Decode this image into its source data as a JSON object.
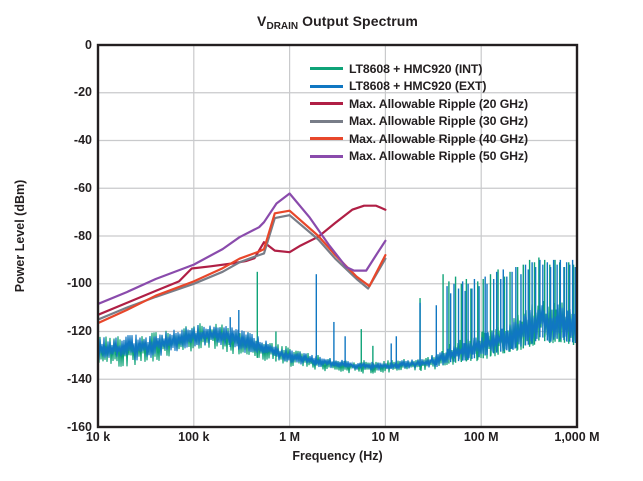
{
  "chart_data": {
    "type": "line",
    "title_prefix": "V",
    "title_sub": "DRAIN",
    "title_rest": "Output Spectrum",
    "xlabel": "Frequency (Hz)",
    "ylabel": "Power Level (dBm)",
    "x_scale": "log",
    "xlim": [
      10000,
      1000000000
    ],
    "ylim": [
      -160,
      0
    ],
    "grid": true,
    "legend_position": "top-right",
    "colors": {
      "axis": "#231f20",
      "grid": "#c9cacc",
      "background": "#ffffff"
    },
    "x_ticks": [
      {
        "f": 10000,
        "label": "10 k"
      },
      {
        "f": 100000,
        "label": "100 k"
      },
      {
        "f": 1000000,
        "label": "1 M"
      },
      {
        "f": 10000000,
        "label": "10 M"
      },
      {
        "f": 100000000,
        "label": "100 M"
      },
      {
        "f": 1000000000,
        "label": "1,000 M"
      }
    ],
    "y_ticks": [
      {
        "v": 0,
        "label": "0"
      },
      {
        "v": -20,
        "label": "-20"
      },
      {
        "v": -40,
        "label": "-40"
      },
      {
        "v": -60,
        "label": "-60"
      },
      {
        "v": -80,
        "label": "-80"
      },
      {
        "v": -100,
        "label": "-100"
      },
      {
        "v": -120,
        "label": "-120"
      },
      {
        "v": -140,
        "label": "-140"
      },
      {
        "v": -160,
        "label": "-160"
      }
    ],
    "series": [
      {
        "name": "LT8608 + HMC920 (INT)",
        "color": "#0fa378",
        "type": "noise",
        "envelope": [
          [
            10000.0,
            -121.5,
            -136
          ],
          [
            20000.0,
            -121,
            -135
          ],
          [
            32000.0,
            -120.5,
            -134
          ],
          [
            50000.0,
            -119.5,
            -132
          ],
          [
            79000.0,
            -118,
            -130
          ],
          [
            110000.0,
            -116.5,
            -128
          ],
          [
            160000.0,
            -116,
            -128
          ],
          [
            220000.0,
            -117,
            -129
          ],
          [
            320000.0,
            -119,
            -131
          ],
          [
            450000.0,
            -121,
            -132
          ],
          [
            630000.0,
            -124,
            -133
          ],
          [
            1000000.0,
            -126.5,
            -135
          ],
          [
            1600000.0,
            -129,
            -136
          ],
          [
            2500000.0,
            -130.5,
            -137
          ],
          [
            4000000.0,
            -131.5,
            -137.5
          ],
          [
            6300000.0,
            -132,
            -138
          ],
          [
            10000000.0,
            -132,
            -138
          ],
          [
            16000000.0,
            -131.5,
            -137.5
          ],
          [
            25000000.0,
            -130.5,
            -137
          ],
          [
            35000000.0,
            -129,
            -136
          ],
          [
            45000000.0,
            -125,
            -134.5
          ],
          [
            56000000.0,
            -123.5,
            -134
          ],
          [
            71000000.0,
            -122,
            -133.5
          ],
          [
            89000000.0,
            -121,
            -133
          ],
          [
            110000000.0,
            -119.5,
            -132
          ],
          [
            140000000.0,
            -118,
            -131
          ],
          [
            180000000.0,
            -116,
            -130
          ],
          [
            220000000.0,
            -114,
            -129
          ],
          [
            280000000.0,
            -111,
            -128
          ],
          [
            350000000.0,
            -107,
            -127
          ],
          [
            420000000.0,
            -104.5,
            -124
          ],
          [
            500000000.0,
            -108,
            -126
          ],
          [
            630000000.0,
            -106.5,
            -125
          ],
          [
            790000000.0,
            -108,
            -126
          ],
          [
            1000000000.0,
            -110,
            -127
          ]
        ],
        "spikes": [
          [
            460000.0,
            -95
          ],
          [
            720000.0,
            -120
          ],
          [
            5600000.0,
            -119
          ],
          [
            7400000.0,
            -126
          ],
          [
            23000000.0,
            -106
          ],
          [
            40000000.0,
            -96
          ],
          [
            46000000.0,
            -99
          ],
          [
            54000000.0,
            -97
          ],
          [
            62000000.0,
            -100
          ],
          [
            70000000.0,
            -98
          ],
          [
            78000000.0,
            -102
          ],
          [
            92000000.0,
            -99
          ],
          [
            105000000.0,
            -98
          ],
          [
            125000000.0,
            -96
          ],
          [
            150000000.0,
            -94
          ],
          [
            175000000.0,
            -97
          ],
          [
            200000000.0,
            -95
          ],
          [
            240000000.0,
            -93
          ],
          [
            275000000.0,
            -92
          ],
          [
            320000000.0,
            -90
          ],
          [
            360000000.0,
            -91
          ],
          [
            400000000.0,
            -89
          ],
          [
            460000000.0,
            -90
          ],
          [
            520000000.0,
            -92
          ],
          [
            590000000.0,
            -90
          ],
          [
            660000000.0,
            -91
          ],
          [
            740000000.0,
            -93
          ],
          [
            820000000.0,
            -91
          ],
          [
            920000000.0,
            -92
          ]
        ]
      },
      {
        "name": "LT8608 + HMC920 (EXT)",
        "color": "#1077c2",
        "type": "noise",
        "envelope": [
          [
            10000.0,
            -122,
            -134
          ],
          [
            14000.0,
            -122,
            -133
          ],
          [
            20000.0,
            -121.5,
            -133
          ],
          [
            32000.0,
            -121,
            -132
          ],
          [
            50000.0,
            -120,
            -130
          ],
          [
            79000.0,
            -118.5,
            -128
          ],
          [
            110000.0,
            -117,
            -126
          ],
          [
            160000.0,
            -116.5,
            -126
          ],
          [
            220000.0,
            -117.5,
            -127
          ],
          [
            320000.0,
            -119.5,
            -129
          ],
          [
            450000.0,
            -121.5,
            -130
          ],
          [
            630000.0,
            -124.5,
            -131.5
          ],
          [
            1000000.0,
            -127,
            -133.5
          ],
          [
            1600000.0,
            -129.5,
            -134.5
          ],
          [
            2500000.0,
            -131,
            -135.5
          ],
          [
            4000000.0,
            -132,
            -136
          ],
          [
            6300000.0,
            -132.5,
            -136.5
          ],
          [
            10000000.0,
            -132.5,
            -136.5
          ],
          [
            16000000.0,
            -132,
            -136
          ],
          [
            25000000.0,
            -131,
            -135.5
          ],
          [
            35000000.0,
            -129.5,
            -135
          ],
          [
            45000000.0,
            -126,
            -134
          ],
          [
            56000000.0,
            -124.5,
            -133.5
          ],
          [
            71000000.0,
            -123,
            -133
          ],
          [
            89000000.0,
            -122,
            -132
          ],
          [
            110000000.0,
            -120.5,
            -131
          ],
          [
            140000000.0,
            -119,
            -130
          ],
          [
            180000000.0,
            -117,
            -129
          ],
          [
            220000000.0,
            -115,
            -128
          ],
          [
            280000000.0,
            -112.5,
            -127
          ],
          [
            350000000.0,
            -110,
            -126
          ],
          [
            420000000.0,
            -108,
            -123
          ],
          [
            500000000.0,
            -110,
            -125
          ],
          [
            630000000.0,
            -108.5,
            -124
          ],
          [
            790000000.0,
            -109.5,
            -125
          ],
          [
            1000000000.0,
            -111,
            -126
          ]
        ],
        "spikes": [
          [
            240000.0,
            -114
          ],
          [
            295000.0,
            -111
          ],
          [
            1900000.0,
            -96
          ],
          [
            2900000.0,
            -116
          ],
          [
            3800000.0,
            -122
          ],
          [
            11500000.0,
            -125
          ],
          [
            13000000.0,
            -122
          ],
          [
            23000000.0,
            -108
          ],
          [
            34000000.0,
            -109
          ],
          [
            44000000.0,
            -101
          ],
          [
            48000000.0,
            -104
          ],
          [
            52000000.0,
            -100
          ],
          [
            58000000.0,
            -102
          ],
          [
            64000000.0,
            -99
          ],
          [
            68000000.0,
            -103
          ],
          [
            73000000.0,
            -100
          ],
          [
            80000000.0,
            -102
          ],
          [
            85000000.0,
            -98
          ],
          [
            95000000.0,
            -101
          ],
          [
            110000000.0,
            -97
          ],
          [
            115000000.0,
            -100
          ],
          [
            135000000.0,
            -98
          ],
          [
            145000000.0,
            -95
          ],
          [
            160000000.0,
            -98
          ],
          [
            170000000.0,
            -94
          ],
          [
            185000000.0,
            -97
          ],
          [
            210000000.0,
            -95
          ],
          [
            230000000.0,
            -93
          ],
          [
            260000000.0,
            -96
          ],
          [
            290000000.0,
            -92
          ],
          [
            310000000.0,
            -94
          ],
          [
            340000000.0,
            -91
          ],
          [
            370000000.0,
            -93
          ],
          [
            410000000.0,
            -90
          ],
          [
            440000000.0,
            -92
          ],
          [
            490000000.0,
            -91
          ],
          [
            530000000.0,
            -93
          ],
          [
            570000000.0,
            -90
          ],
          [
            620000000.0,
            -92
          ],
          [
            670000000.0,
            -90
          ],
          [
            730000000.0,
            -93
          ],
          [
            780000000.0,
            -91
          ],
          [
            840000000.0,
            -92
          ],
          [
            900000000.0,
            -90
          ],
          [
            960000000.0,
            -93
          ]
        ]
      },
      {
        "name": "Max. Allowable Ripple (20 GHz)",
        "color": "#b01f45",
        "type": "line",
        "points": [
          [
            10000.0,
            -113
          ],
          [
            20000.0,
            -108
          ],
          [
            40000.0,
            -103
          ],
          [
            70000.0,
            -99
          ],
          [
            95000.0,
            -93.6
          ],
          [
            150000.0,
            -92.7
          ],
          [
            250000.0,
            -91.5
          ],
          [
            350000.0,
            -90.5
          ],
          [
            430000.0,
            -89.3
          ],
          [
            540000.0,
            -82.6
          ],
          [
            700000.0,
            -86.1
          ],
          [
            1000000.0,
            -86.8
          ],
          [
            1300000.0,
            -84
          ],
          [
            2000000.0,
            -80.3
          ],
          [
            3000000.0,
            -74.5
          ],
          [
            4500000.0,
            -69
          ],
          [
            6000000.0,
            -67.3
          ],
          [
            8000000.0,
            -67.3
          ],
          [
            10000000.0,
            -69
          ]
        ]
      },
      {
        "name": "Max. Allowable Ripple (30 GHz)",
        "color": "#787d88",
        "type": "line",
        "points": [
          [
            10000.0,
            -115
          ],
          [
            20000.0,
            -110
          ],
          [
            40000.0,
            -105.5
          ],
          [
            100000.0,
            -100
          ],
          [
            200000.0,
            -95
          ],
          [
            300000.0,
            -91
          ],
          [
            480000.0,
            -88
          ],
          [
            540000.0,
            -87.3
          ],
          [
            700000.0,
            -72.5
          ],
          [
            1000000.0,
            -71.3
          ],
          [
            2000000.0,
            -81.5
          ],
          [
            3000000.0,
            -89.5
          ],
          [
            5000000.0,
            -98
          ],
          [
            6600000.0,
            -102
          ],
          [
            10000000.0,
            -89.5
          ]
        ]
      },
      {
        "name": "Max. Allowable Ripple (40 GHz)",
        "color": "#e8472b",
        "type": "line",
        "points": [
          [
            10000.0,
            -116.5
          ],
          [
            20000.0,
            -111
          ],
          [
            40000.0,
            -105
          ],
          [
            100000.0,
            -99
          ],
          [
            200000.0,
            -93.5
          ],
          [
            300000.0,
            -89.5
          ],
          [
            480000.0,
            -86.5
          ],
          [
            540000.0,
            -85.5
          ],
          [
            700000.0,
            -70.5
          ],
          [
            1000000.0,
            -69.4
          ],
          [
            2000000.0,
            -80
          ],
          [
            3000000.0,
            -88
          ],
          [
            5000000.0,
            -97
          ],
          [
            6800000.0,
            -101
          ],
          [
            10000000.0,
            -88
          ]
        ]
      },
      {
        "name": "Max. Allowable Ripple (50 GHz)",
        "color": "#8a4bac",
        "type": "line",
        "points": [
          [
            10000.0,
            -108.5
          ],
          [
            20000.0,
            -103.5
          ],
          [
            40000.0,
            -98
          ],
          [
            100000.0,
            -92
          ],
          [
            200000.0,
            -85.5
          ],
          [
            300000.0,
            -80.5
          ],
          [
            480000.0,
            -76.3
          ],
          [
            540000.0,
            -74.2
          ],
          [
            730000.0,
            -66.4
          ],
          [
            1000000.0,
            -62.2
          ],
          [
            1600000.0,
            -72
          ],
          [
            2600000.0,
            -84
          ],
          [
            3900000.0,
            -93
          ],
          [
            4700000.0,
            -94.5
          ],
          [
            6300000.0,
            -94.5
          ],
          [
            8000000.0,
            -88
          ],
          [
            10000000.0,
            -82
          ]
        ]
      }
    ]
  }
}
